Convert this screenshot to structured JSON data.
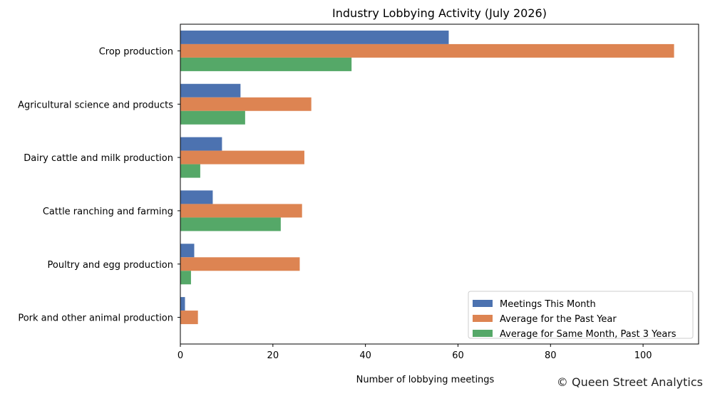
{
  "chart_data": {
    "type": "bar",
    "orientation": "horizontal",
    "title": "Industry Lobbying Activity (July 2026)",
    "xlabel": "Number of lobbying meetings",
    "ylabel": "",
    "xlim": [
      0,
      112
    ],
    "x_ticks": [
      0,
      20,
      40,
      60,
      80,
      100
    ],
    "grid": false,
    "legend_position": "bottom-right",
    "categories": [
      "Crop production",
      "Agricultural science and products",
      "Dairy cattle and milk production",
      "Cattle ranching and farming",
      "Poultry and egg production",
      "Pork and other animal production"
    ],
    "series": [
      {
        "name": "Meetings This Month",
        "color": "#4c72b0",
        "values": [
          58,
          13,
          9,
          7,
          3,
          1
        ]
      },
      {
        "name": "Average for the Past Year",
        "color": "#dd8452",
        "values": [
          106.7,
          28.3,
          26.8,
          26.3,
          25.8,
          3.8
        ]
      },
      {
        "name": "Average for Same Month, Past 3 Years",
        "color": "#55a868",
        "values": [
          37,
          14,
          4.3,
          21.7,
          2.3,
          0
        ]
      }
    ]
  },
  "credit": "© Queen Street Analytics"
}
